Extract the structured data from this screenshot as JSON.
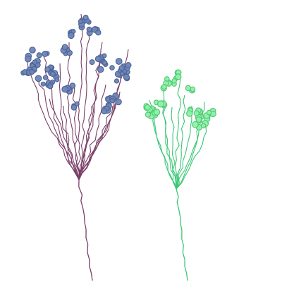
{
  "scene": {
    "background": "#ffffff",
    "plants": [
      {
        "name": "left-plant",
        "stem_color": "#7a3f67",
        "flower_color": "#6f86b8",
        "flower_edge": "#4f6496"
      },
      {
        "name": "right-plant",
        "stem_color": "#39c673",
        "flower_color": "#8ff2a6",
        "flower_edge": "#54c97a"
      }
    ]
  }
}
